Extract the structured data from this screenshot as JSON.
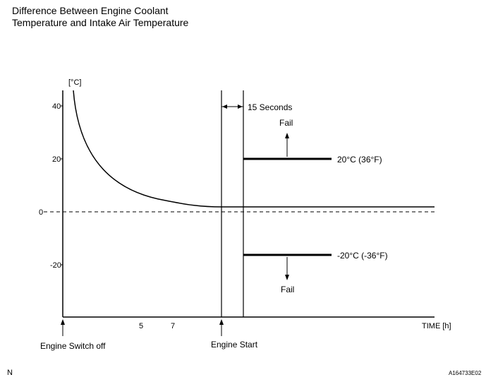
{
  "title_line1": "Difference Between Engine Coolant",
  "title_line2": "Temperature and Intake Air Temperature",
  "y_unit": "[°C]",
  "y_ticks": [
    "40",
    "20",
    "0",
    "-20"
  ],
  "x_ticks": [
    "5",
    "7"
  ],
  "x_axis_label": "TIME [h]",
  "interval_label": "15 Seconds",
  "upper_threshold_label": "20°C (36°F)",
  "lower_threshold_label": "-20°C (-36°F)",
  "fail_label": "Fail",
  "event_engine_switch_off": "Engine Switch off",
  "event_engine_start": "Engine Start",
  "corner_mark": "N",
  "figure_code": "A164733E02"
}
